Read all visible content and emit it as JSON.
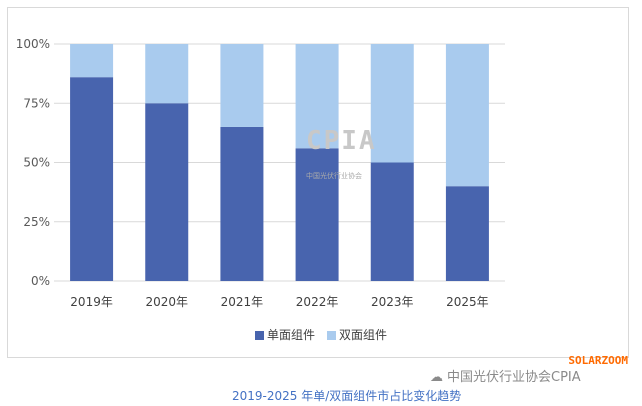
{
  "chart_data": {
    "type": "bar",
    "stacked": true,
    "categories": [
      "2019年",
      "2020年",
      "2021年",
      "2022年",
      "2023年",
      "2025年"
    ],
    "series": [
      {
        "name": "单面组件",
        "values": [
          86,
          75,
          65,
          56,
          50,
          40
        ],
        "color": "#4864ae"
      },
      {
        "name": "双面组件",
        "values": [
          14,
          25,
          35,
          44,
          50,
          60
        ],
        "color": "#a9cbee"
      }
    ],
    "yticks": [
      "0%",
      "25%",
      "50%",
      "75%",
      "100%"
    ],
    "ylim": [
      0,
      100
    ],
    "grid": true,
    "legend": "bottom"
  },
  "watermark": {
    "logo_text": "CPIA",
    "logo_sub": "中国光伏行业协会"
  },
  "footer": {
    "account": "中国光伏行业协会CPIA",
    "brand": "SOLARZOOM",
    "caption": "2019-2025 年单/双面组件市占比变化趋势"
  }
}
